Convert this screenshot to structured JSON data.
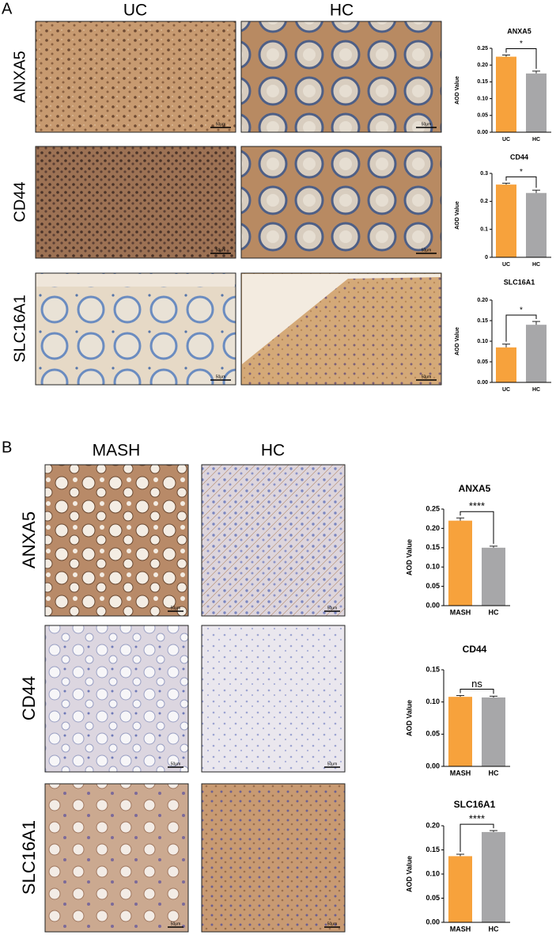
{
  "figure": {
    "panels": [
      "A",
      "B"
    ],
    "a_columns": [
      "UC",
      "HC"
    ],
    "b_columns": [
      "MASH",
      "HC"
    ],
    "rows": [
      "ANXA5",
      "CD44",
      "SLC16A1"
    ],
    "scale_bar": "50μm"
  },
  "chart_data": [
    {
      "type": "bar",
      "title": "ANXA5",
      "y_label": "AOD Value",
      "categories": [
        "UC",
        "HC"
      ],
      "colors": [
        "#f7a23c",
        "#a7a7a9"
      ],
      "values": [
        0.225,
        0.175
      ],
      "errors": [
        0.005,
        0.007
      ],
      "significance": "*",
      "ylim": [
        0,
        0.25
      ],
      "yticks": [
        {
          "value": 0,
          "label": "0.00"
        },
        {
          "value": 0.05,
          "label": "0.05"
        },
        {
          "value": 0.1,
          "label": "0.10"
        },
        {
          "value": 0.15,
          "label": "0.15"
        },
        {
          "value": 0.2,
          "label": "0.20"
        },
        {
          "value": 0.25,
          "label": "0.25"
        }
      ]
    },
    {
      "type": "bar",
      "title": "CD44",
      "y_label": "AOD Value",
      "categories": [
        "UC",
        "HC"
      ],
      "colors": [
        "#f7a23c",
        "#a7a7a9"
      ],
      "values": [
        0.26,
        0.23
      ],
      "errors": [
        0.005,
        0.01
      ],
      "significance": "*",
      "ylim": [
        0,
        0.3
      ],
      "yticks": [
        0,
        0.1,
        0.2,
        0.3
      ]
    },
    {
      "type": "bar",
      "title": "SLC16A1",
      "y_label": "AOD Value",
      "categories": [
        "UC",
        "HC"
      ],
      "colors": [
        "#f7a23c",
        "#a7a7a9"
      ],
      "values": [
        0.085,
        0.14
      ],
      "errors": [
        0.008,
        0.008
      ],
      "significance": "*",
      "ylim": [
        0,
        0.2
      ],
      "yticks": [
        {
          "value": 0,
          "label": "0.00"
        },
        {
          "value": 0.05,
          "label": "0.05"
        },
        {
          "value": 0.1,
          "label": "0.10"
        },
        {
          "value": 0.15,
          "label": "0.15"
        },
        {
          "value": 0.2,
          "label": "0.20"
        }
      ]
    },
    {
      "type": "bar",
      "title": "ANXA5",
      "y_label": "AOD Value",
      "categories": [
        "MASH",
        "HC"
      ],
      "colors": [
        "#f7a23c",
        "#a7a7a9"
      ],
      "values": [
        0.22,
        0.15
      ],
      "errors": [
        0.007,
        0.004
      ],
      "significance": "****",
      "ylim": [
        0,
        0.25
      ],
      "yticks": [
        {
          "value": 0,
          "label": "0.00"
        },
        {
          "value": 0.05,
          "label": "0.05"
        },
        {
          "value": 0.1,
          "label": "0.10"
        },
        {
          "value": 0.15,
          "label": "0.15"
        },
        {
          "value": 0.2,
          "label": "0.20"
        },
        {
          "value": 0.25,
          "label": "0.25"
        }
      ]
    },
    {
      "type": "bar",
      "title": "CD44",
      "y_label": "AOD Value",
      "categories": [
        "MASH",
        "HC"
      ],
      "colors": [
        "#f7a23c",
        "#a7a7a9"
      ],
      "values": [
        0.108,
        0.107
      ],
      "errors": [
        0.002,
        0.002
      ],
      "significance": "ns",
      "ylim": [
        0,
        0.15
      ],
      "yticks": [
        {
          "value": 0,
          "label": "0.00"
        },
        {
          "value": 0.05,
          "label": "0.05"
        },
        {
          "value": 0.1,
          "label": "0.10"
        },
        {
          "value": 0.15,
          "label": "0.15"
        }
      ]
    },
    {
      "type": "bar",
      "title": "SLC16A1",
      "y_label": "AOD Value",
      "categories": [
        "MASH",
        "HC"
      ],
      "colors": [
        "#f7a23c",
        "#a7a7a9"
      ],
      "values": [
        0.137,
        0.187
      ],
      "errors": [
        0.004,
        0.003
      ],
      "significance": "****",
      "ylim": [
        0,
        0.2
      ],
      "yticks": [
        {
          "value": 0,
          "label": "0.00"
        },
        {
          "value": 0.05,
          "label": "0.05"
        },
        {
          "value": 0.1,
          "label": "0.10"
        },
        {
          "value": 0.15,
          "label": "0.15"
        },
        {
          "value": 0.2,
          "label": "0.20"
        }
      ]
    }
  ]
}
